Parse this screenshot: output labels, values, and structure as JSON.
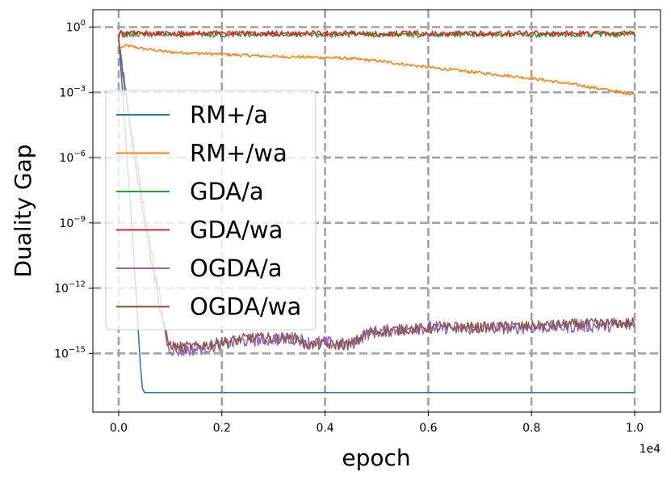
{
  "chart_data": {
    "type": "line",
    "xlabel": "epoch",
    "ylabel": "Duality Gap",
    "x_offset_label": "1e4",
    "xlim": [
      -500,
      10500
    ],
    "ylog_lim": [
      -17.7,
      0.8
    ],
    "x_ticks": [
      {
        "value": 0,
        "label": "0.0"
      },
      {
        "value": 2000,
        "label": "0.2"
      },
      {
        "value": 4000,
        "label": "0.4"
      },
      {
        "value": 6000,
        "label": "0.6"
      },
      {
        "value": 8000,
        "label": "0.8"
      },
      {
        "value": 10000,
        "label": "1.0"
      }
    ],
    "y_ticks": [
      {
        "exp": 0,
        "base": "10",
        "sup": "0"
      },
      {
        "exp": -3,
        "base": "10",
        "sup": "−3"
      },
      {
        "exp": -6,
        "base": "10",
        "sup": "−6"
      },
      {
        "exp": -9,
        "base": "10",
        "sup": "−9"
      },
      {
        "exp": -12,
        "base": "10",
        "sup": "−12"
      },
      {
        "exp": -15,
        "base": "10",
        "sup": "−15"
      }
    ],
    "grid": true,
    "legend_position": "center-left",
    "series": [
      {
        "name": "RM+/a",
        "color": "#1f77b4",
        "x": [
          0,
          120,
          250,
          350,
          420,
          460,
          500,
          1000,
          2000,
          4000,
          6000,
          8000,
          10000
        ],
        "log10_y": [
          -0.5,
          -4.5,
          -9.0,
          -12.8,
          -15.5,
          -16.6,
          -16.8,
          -16.8,
          -16.8,
          -16.8,
          -16.8,
          -16.8,
          -16.8
        ]
      },
      {
        "name": "RM+/wa",
        "color": "#ff7f0e",
        "x": [
          0,
          80,
          150,
          500,
          1000,
          2000,
          3000,
          4000,
          4500,
          5000,
          6000,
          7000,
          8000,
          9000,
          10000
        ],
        "log10_y": [
          -1.0,
          -0.9,
          -0.85,
          -1.0,
          -1.15,
          -1.25,
          -1.35,
          -1.4,
          -1.45,
          -1.55,
          -1.85,
          -2.1,
          -2.35,
          -2.7,
          -3.1
        ],
        "noise": 0.07
      },
      {
        "name": "GDA/a",
        "color": "#2ca02c",
        "x": [
          0,
          30,
          60,
          10000
        ],
        "log10_y": [
          -0.6,
          -0.2,
          -0.25,
          -0.25
        ],
        "noise": 0.18
      },
      {
        "name": "GDA/wa",
        "color": "#d62728",
        "x": [
          0,
          30,
          60,
          10000
        ],
        "log10_y": [
          -0.5,
          -0.15,
          -0.2,
          -0.2
        ],
        "noise": 0.18
      },
      {
        "name": "OGDA/a",
        "color": "#9467bd",
        "x": [
          0,
          200,
          500,
          800,
          950,
          1100,
          1500,
          2000,
          2500,
          3500,
          3600,
          4000,
          4500,
          4800,
          5000,
          5500,
          6000,
          7000,
          8000,
          9000,
          10000
        ],
        "log10_y": [
          -0.5,
          -4.0,
          -8.5,
          -12.5,
          -14.7,
          -14.9,
          -14.8,
          -14.6,
          -14.4,
          -14.3,
          -14.5,
          -14.5,
          -14.6,
          -14.1,
          -14.0,
          -13.9,
          -13.8,
          -13.85,
          -13.8,
          -13.75,
          -13.7
        ],
        "noise": 0.3
      },
      {
        "name": "OGDA/wa",
        "color": "#8c564b",
        "x": [
          0,
          200,
          500,
          800,
          950,
          1100,
          1500,
          2000,
          2500,
          3500,
          3600,
          4000,
          4500,
          4800,
          5000,
          5500,
          6000,
          7000,
          8000,
          9000,
          10000
        ],
        "log10_y": [
          -0.6,
          -4.3,
          -8.9,
          -12.9,
          -14.5,
          -14.7,
          -14.7,
          -14.5,
          -14.3,
          -14.3,
          -14.6,
          -14.6,
          -14.6,
          -14.1,
          -14.0,
          -13.9,
          -13.85,
          -13.8,
          -13.75,
          -13.65,
          -13.6
        ],
        "noise": 0.25
      }
    ]
  }
}
